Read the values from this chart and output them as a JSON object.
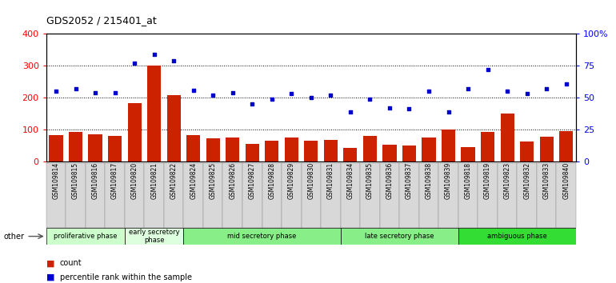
{
  "title": "GDS2052 / 215401_at",
  "samples": [
    "GSM109814",
    "GSM109815",
    "GSM109816",
    "GSM109817",
    "GSM109820",
    "GSM109821",
    "GSM109822",
    "GSM109824",
    "GSM109825",
    "GSM109826",
    "GSM109827",
    "GSM109828",
    "GSM109829",
    "GSM109830",
    "GSM109831",
    "GSM109834",
    "GSM109835",
    "GSM109836",
    "GSM109837",
    "GSM109838",
    "GSM109839",
    "GSM109818",
    "GSM109819",
    "GSM109823",
    "GSM109832",
    "GSM109833",
    "GSM109840"
  ],
  "counts": [
    82,
    92,
    84,
    79,
    184,
    300,
    207,
    82,
    72,
    76,
    54,
    64,
    76,
    65,
    68,
    42,
    80,
    52,
    50,
    75,
    100,
    45,
    92,
    150,
    62,
    78,
    95
  ],
  "percentiles_pct": [
    55,
    57,
    54,
    54,
    77,
    84,
    79,
    56,
    52,
    54,
    45,
    49,
    53,
    50,
    52,
    39,
    49,
    42,
    41,
    55,
    39,
    57,
    72,
    55,
    53,
    57,
    61
  ],
  "bar_color": "#cc2200",
  "dot_color": "#0000cc",
  "ylim_left": [
    0,
    400
  ],
  "yticks_left": [
    0,
    100,
    200,
    300,
    400
  ],
  "yticks_right": [
    0,
    25,
    50,
    75,
    100
  ],
  "ytick_labels_right": [
    "0",
    "25",
    "50",
    "75",
    "100%"
  ],
  "phase_defs": [
    {
      "label": "proliferative phase",
      "start": 0,
      "end": 3,
      "color": "#ccffcc"
    },
    {
      "label": "early secretory\nphase",
      "start": 4,
      "end": 6,
      "color": "#ddffdd"
    },
    {
      "label": "mid secretory phase",
      "start": 7,
      "end": 14,
      "color": "#88ee88"
    },
    {
      "label": "late secretory phase",
      "start": 15,
      "end": 20,
      "color": "#88ee88"
    },
    {
      "label": "ambiguous phase",
      "start": 21,
      "end": 26,
      "color": "#33dd33"
    }
  ]
}
